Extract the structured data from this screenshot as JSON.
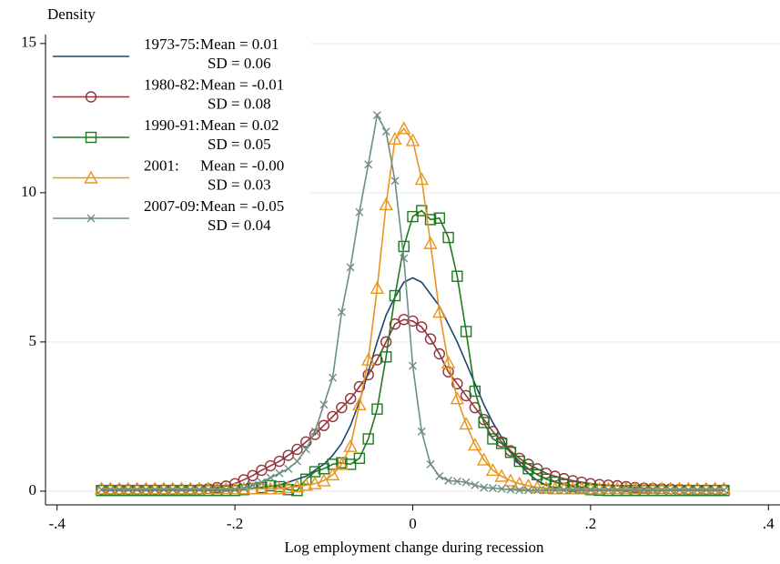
{
  "chart_data": {
    "type": "line",
    "title": "Density",
    "x_label": "Log employment change during recession",
    "x": [
      -0.35,
      -0.34,
      -0.33,
      -0.32,
      -0.31,
      -0.3,
      -0.29,
      -0.28,
      -0.27,
      -0.26,
      -0.25,
      -0.24,
      -0.23,
      -0.22,
      -0.21,
      -0.2,
      -0.19,
      -0.18,
      -0.17,
      -0.16,
      -0.15,
      -0.14,
      -0.13,
      -0.12,
      -0.11,
      -0.1,
      -0.09,
      -0.08,
      -0.07,
      -0.06,
      -0.05,
      -0.04,
      -0.03,
      -0.02,
      -0.01,
      0,
      0.01,
      0.02,
      0.03,
      0.04,
      0.05,
      0.06,
      0.07,
      0.08,
      0.09,
      0.1,
      0.11,
      0.12,
      0.13,
      0.14,
      0.15,
      0.16,
      0.17,
      0.18,
      0.19,
      0.2,
      0.21,
      0.22,
      0.23,
      0.24,
      0.25,
      0.26,
      0.27,
      0.28,
      0.29,
      0.3,
      0.31,
      0.32,
      0.33,
      0.34,
      0.35
    ],
    "series": [
      {
        "name": "1973-75:",
        "mean": "Mean = 0.01",
        "sd": "SD = 0.06",
        "color": "#1a476f",
        "marker": "none",
        "values": [
          0.02,
          0.02,
          0.02,
          0.02,
          0.02,
          0.02,
          0.02,
          0.02,
          0.02,
          0.02,
          0.02,
          0.02,
          0.02,
          0.02,
          0.02,
          0.05,
          0.07,
          0.1,
          0.13,
          0.16,
          0.2,
          0.3,
          0.4,
          0.5,
          0.7,
          0.9,
          1.2,
          1.6,
          2.2,
          3.0,
          4.0,
          5.0,
          5.9,
          6.5,
          7.0,
          7.15,
          7.0,
          6.6,
          6.2,
          5.6,
          5.0,
          4.3,
          3.6,
          2.9,
          2.3,
          1.8,
          1.3,
          0.9,
          0.6,
          0.35,
          0.2,
          0.1,
          0.05,
          0.02,
          0.02,
          0.02,
          0.02,
          0.02,
          0.02,
          0.02,
          0.02,
          0.02,
          0.02,
          0.02,
          0.02,
          0.02,
          0.02,
          0.02,
          0.02,
          0.02,
          0.02
        ]
      },
      {
        "name": "1980-82:",
        "mean": "Mean = -0.01",
        "sd": "SD = 0.08",
        "color": "#90353b",
        "marker": "circle",
        "values": [
          0.05,
          0.05,
          0.05,
          0.05,
          0.05,
          0.05,
          0.05,
          0.05,
          0.05,
          0.05,
          0.05,
          0.06,
          0.08,
          0.12,
          0.17,
          0.25,
          0.38,
          0.52,
          0.7,
          0.85,
          1.0,
          1.2,
          1.4,
          1.65,
          1.9,
          2.2,
          2.5,
          2.8,
          3.1,
          3.5,
          3.9,
          4.4,
          5.0,
          5.6,
          5.75,
          5.7,
          5.5,
          5.1,
          4.6,
          4.0,
          3.6,
          3.2,
          2.8,
          2.4,
          2.0,
          1.65,
          1.35,
          1.1,
          0.9,
          0.75,
          0.6,
          0.5,
          0.42,
          0.35,
          0.3,
          0.25,
          0.22,
          0.2,
          0.18,
          0.15,
          0.12,
          0.1,
          0.09,
          0.08,
          0.07,
          0.06,
          0.05,
          0.05,
          0.05,
          0.05,
          0.05
        ]
      },
      {
        "name": "1990-91:",
        "mean": "Mean = 0.02",
        "sd": "SD = 0.05",
        "color": "#1f7a1f",
        "marker": "square",
        "values": [
          0.02,
          0.02,
          0.02,
          0.02,
          0.02,
          0.02,
          0.02,
          0.02,
          0.02,
          0.02,
          0.02,
          0.02,
          0.02,
          0.02,
          0.02,
          0.02,
          0.05,
          0.08,
          0.12,
          0.18,
          0.15,
          0.05,
          0.02,
          0.4,
          0.65,
          0.75,
          0.9,
          0.95,
          0.9,
          1.1,
          1.75,
          2.75,
          4.5,
          6.55,
          8.2,
          9.2,
          9.4,
          9.1,
          9.15,
          8.5,
          7.2,
          5.35,
          3.35,
          2.3,
          1.75,
          1.6,
          1.3,
          1.0,
          0.75,
          0.55,
          0.4,
          0.3,
          0.22,
          0.15,
          0.1,
          0.05,
          0.03,
          0.02,
          0.02,
          0.02,
          0.02,
          0.02,
          0.02,
          0.02,
          0.02,
          0.02,
          0.02,
          0.02,
          0.02,
          0.02,
          0.02
        ]
      },
      {
        "name": "2001:",
        "mean": "Mean = -0.00",
        "sd": "SD = 0.03",
        "color": "#e8951e",
        "marker": "triangle",
        "values": [
          0.08,
          0.08,
          0.08,
          0.08,
          0.08,
          0.08,
          0.08,
          0.08,
          0.08,
          0.08,
          0.08,
          0.08,
          0.08,
          0.08,
          0.08,
          0.08,
          0.08,
          0.08,
          0.08,
          0.08,
          0.08,
          0.12,
          0.15,
          0.2,
          0.25,
          0.35,
          0.55,
          0.9,
          1.5,
          2.9,
          4.4,
          6.8,
          9.6,
          11.8,
          12.15,
          11.75,
          10.45,
          8.3,
          6.0,
          4.3,
          3.1,
          2.25,
          1.55,
          1.05,
          0.7,
          0.5,
          0.35,
          0.25,
          0.18,
          0.12,
          0.1,
          0.08,
          0.08,
          0.08,
          0.08,
          0.08,
          0.08,
          0.08,
          0.08,
          0.08,
          0.08,
          0.08,
          0.08,
          0.08,
          0.08,
          0.08,
          0.08,
          0.08,
          0.08,
          0.08,
          0.08
        ]
      },
      {
        "name": "2007-09:",
        "mean": "Mean = -0.05",
        "sd": "SD = 0.04",
        "color": "#6e8e84",
        "marker": "x",
        "values": [
          0.05,
          0.05,
          0.05,
          0.05,
          0.05,
          0.05,
          0.05,
          0.05,
          0.05,
          0.05,
          0.05,
          0.05,
          0.05,
          0.05,
          0.05,
          0.05,
          0.1,
          0.2,
          0.3,
          0.45,
          0.6,
          0.75,
          1.0,
          1.4,
          2.0,
          2.9,
          3.8,
          6.0,
          7.5,
          9.35,
          10.95,
          12.6,
          12.05,
          10.4,
          7.8,
          4.2,
          2.0,
          0.9,
          0.5,
          0.35,
          0.33,
          0.3,
          0.2,
          0.12,
          0.1,
          0.08,
          0.05,
          0.03,
          0.03,
          0.03,
          0.03,
          0.03,
          0.03,
          0.03,
          0.03,
          0.03,
          0.03,
          0.03,
          0.03,
          0.03,
          0.03,
          0.03,
          0.03,
          0.03,
          0.03,
          0.03,
          0.03,
          0.03,
          0.03,
          0.03,
          0.03
        ]
      }
    ],
    "xlim": [
      -0.413,
      0.413
    ],
    "ylim": [
      -0.46,
      15.3
    ],
    "xticks": [
      {
        "value": -0.4,
        "label": "-.4"
      },
      {
        "value": -0.2,
        "label": "-.2"
      },
      0,
      {
        "value": 0.2,
        "label": ".2"
      },
      {
        "value": 0.4,
        "label": ".4"
      }
    ],
    "yticks": [
      0,
      5,
      10,
      15
    ],
    "grid": true
  }
}
